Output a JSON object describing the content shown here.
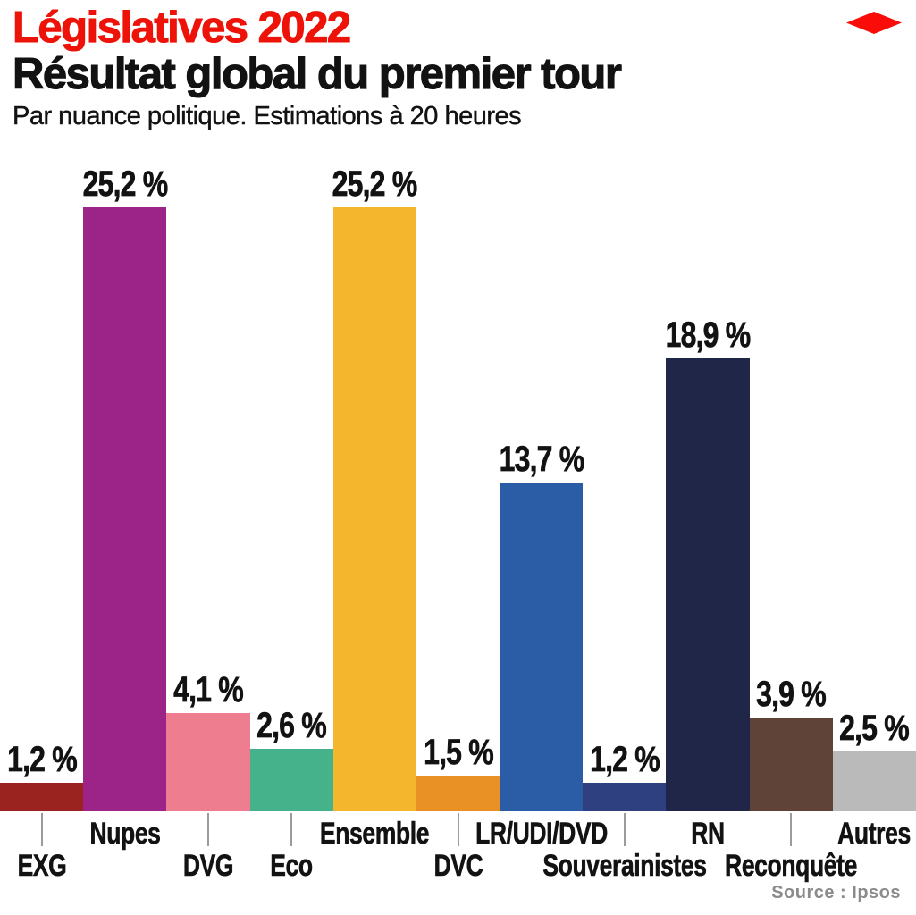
{
  "header": {
    "kicker": "Législatives 2022",
    "kicker_color": "#ED1309",
    "title": "Résultat global du premier tour",
    "subtitle": "Par nuance politique. Estimations à 20 heures",
    "logo_icon": "red-diamond",
    "logo_color": "#FA0D09"
  },
  "source": "Source : Ipsos",
  "chart_data": {
    "type": "bar",
    "title": "Résultat global du premier tour",
    "subtitle": "Par nuance politique. Estimations à 20 heures",
    "categories": [
      "EXG",
      "Nupes",
      "DVG",
      "Eco",
      "Ensemble",
      "DVC",
      "LR/UDI/DVD",
      "Souverainistes",
      "RN",
      "Reconquête",
      "Autres"
    ],
    "values": [
      1.2,
      25.2,
      4.1,
      2.6,
      25.2,
      1.5,
      13.7,
      1.2,
      18.9,
      3.9,
      2.5
    ],
    "value_labels": [
      "1,2 %",
      "25,2 %",
      "4,1 %",
      "2,6 %",
      "25,2 %",
      "1,5 %",
      "13,7 %",
      "1,2 %",
      "18,9 %",
      "3,9 %",
      "2,5 %"
    ],
    "colors": [
      "#9A231F",
      "#9C2387",
      "#EE7D90",
      "#45B28B",
      "#F4B62D",
      "#EA9126",
      "#2B5DA7",
      "#2F4080",
      "#202647",
      "#5F4238",
      "#BABABA"
    ],
    "label_rows": [
      "lower",
      "upper",
      "lower",
      "lower",
      "upper",
      "lower",
      "upper",
      "lower",
      "upper",
      "lower",
      "upper"
    ],
    "unit": "%",
    "ylim": [
      0,
      27
    ],
    "grid": false,
    "legend": "none",
    "axis_line": "none"
  }
}
